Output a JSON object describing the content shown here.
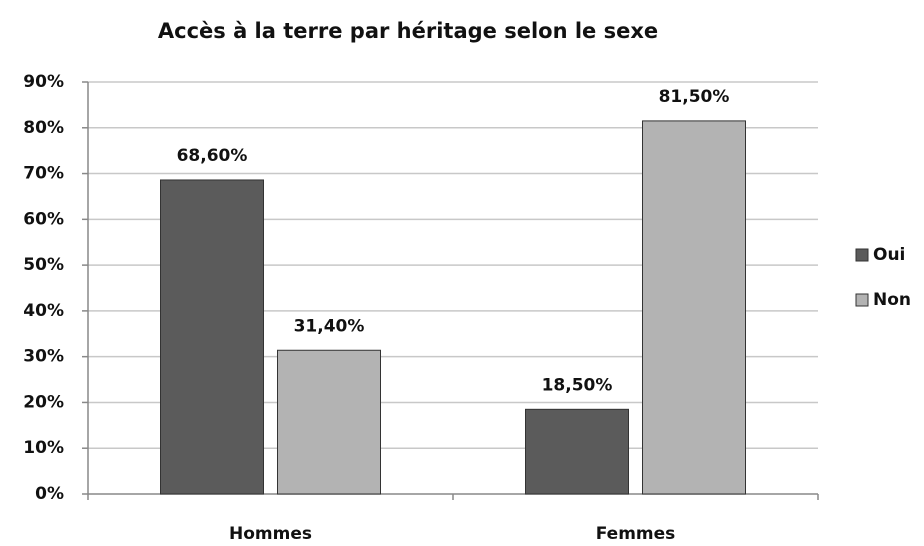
{
  "chart_data": {
    "type": "bar",
    "title": "Accès à la terre par héritage selon le sexe",
    "categories": [
      "Hommes",
      "Femmes"
    ],
    "series": [
      {
        "name": "Oui",
        "color": "#5b5b5b",
        "values": [
          68.6,
          18.5
        ],
        "value_labels": [
          "68,60%",
          "18,50%"
        ]
      },
      {
        "name": "Non",
        "color": "#b3b3b3",
        "values": [
          31.4,
          81.5
        ],
        "value_labels": [
          "31,40%",
          "81,50%"
        ]
      }
    ],
    "ylim": [
      0,
      90
    ],
    "yticks": [
      {
        "value": 0,
        "label": "0%"
      },
      {
        "value": 10,
        "label": "10%"
      },
      {
        "value": 20,
        "label": "20%"
      },
      {
        "value": 30,
        "label": "30%"
      },
      {
        "value": 40,
        "label": "40%"
      },
      {
        "value": 50,
        "label": "50%"
      },
      {
        "value": 60,
        "label": "60%"
      },
      {
        "value": 70,
        "label": "70%"
      },
      {
        "value": 80,
        "label": "80%"
      },
      {
        "value": 90,
        "label": "90%"
      }
    ],
    "grid": true,
    "legend": "right"
  }
}
